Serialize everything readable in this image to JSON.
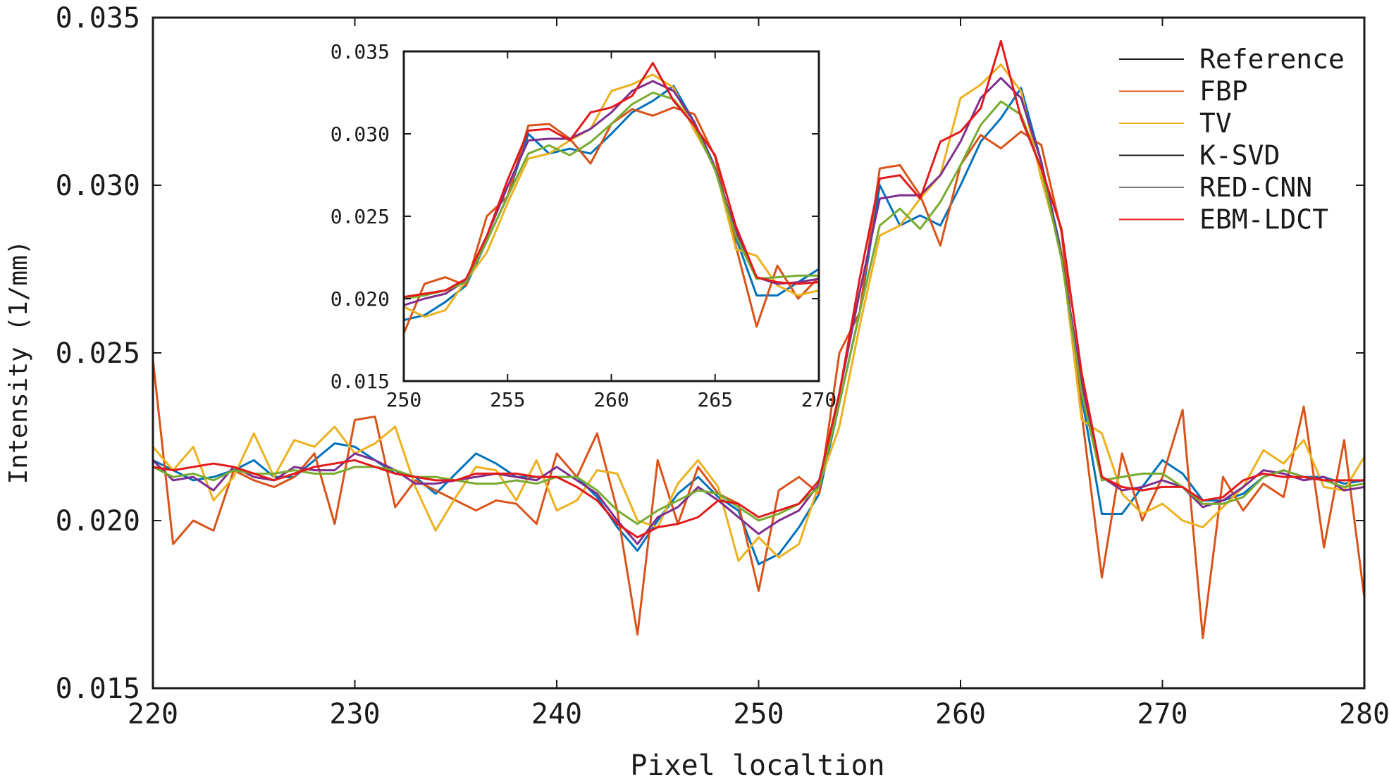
{
  "chart_data": [
    {
      "type": "line",
      "title": "",
      "xlabel": "Pixel localtion",
      "ylabel": "Intensity (1/mm)",
      "xlim": [
        220,
        280
      ],
      "ylim": [
        0.015,
        0.035
      ],
      "xticks": [
        220,
        230,
        240,
        250,
        260,
        270,
        280
      ],
      "xtick_labels": [
        "220",
        "230",
        "240",
        "250",
        "260",
        "270",
        "280"
      ],
      "yticks": [
        0.015,
        0.02,
        0.025,
        0.03,
        0.035
      ],
      "ytick_labels": [
        "0.015",
        "0.020",
        "0.025",
        "0.030",
        "0.035"
      ],
      "grid": false,
      "legend_position": "top-right",
      "x": [
        220,
        221,
        222,
        223,
        224,
        225,
        226,
        227,
        228,
        229,
        230,
        231,
        232,
        233,
        234,
        235,
        236,
        237,
        238,
        239,
        240,
        241,
        242,
        243,
        244,
        245,
        246,
        247,
        248,
        249,
        250,
        251,
        252,
        253,
        254,
        255,
        256,
        257,
        258,
        259,
        260,
        261,
        262,
        263,
        264,
        265,
        266,
        267,
        268,
        269,
        270,
        271,
        272,
        273,
        274,
        275,
        276,
        277,
        278,
        279,
        280
      ],
      "series": [
        {
          "name": "Reference",
          "color": "#0072BD",
          "values": [
            0.0218,
            0.0215,
            0.0212,
            0.0213,
            0.0215,
            0.0218,
            0.0213,
            0.0213,
            0.0218,
            0.0223,
            0.0222,
            0.0218,
            0.0214,
            0.0213,
            0.0208,
            0.0214,
            0.022,
            0.0217,
            0.0213,
            0.0213,
            0.0213,
            0.0213,
            0.0207,
            0.0198,
            0.0191,
            0.02,
            0.0208,
            0.0213,
            0.0207,
            0.0203,
            0.0187,
            0.019,
            0.0198,
            0.0208,
            0.0235,
            0.0262,
            0.03,
            0.0288,
            0.0291,
            0.0288,
            0.03,
            0.0313,
            0.032,
            0.0329,
            0.0307,
            0.028,
            0.0237,
            0.0202,
            0.0202,
            0.021,
            0.0218,
            0.0214,
            0.0206,
            0.0206,
            0.0208,
            0.0213,
            0.0215,
            0.0213,
            0.0213,
            0.0211,
            0.0212
          ]
        },
        {
          "name": "FBP",
          "color": "#D95319",
          "values": [
            0.0248,
            0.0193,
            0.02,
            0.0197,
            0.0215,
            0.0212,
            0.021,
            0.0213,
            0.022,
            0.0199,
            0.023,
            0.0231,
            0.0204,
            0.0212,
            0.0209,
            0.0206,
            0.0203,
            0.0206,
            0.0205,
            0.0199,
            0.022,
            0.0213,
            0.0226,
            0.0203,
            0.0166,
            0.0218,
            0.0199,
            0.0216,
            0.0208,
            0.0205,
            0.0179,
            0.0209,
            0.0213,
            0.0208,
            0.025,
            0.0262,
            0.0305,
            0.0306,
            0.0297,
            0.0282,
            0.0306,
            0.0315,
            0.0311,
            0.0316,
            0.0312,
            0.0286,
            0.0232,
            0.0183,
            0.022,
            0.02,
            0.0213,
            0.0233,
            0.0165,
            0.0213,
            0.0203,
            0.0211,
            0.0207,
            0.0234,
            0.0192,
            0.0224,
            0.0177
          ]
        },
        {
          "name": "TV",
          "color": "#EDB120",
          "values": [
            0.0222,
            0.0215,
            0.0222,
            0.0206,
            0.0213,
            0.0226,
            0.0213,
            0.0224,
            0.0222,
            0.0228,
            0.022,
            0.0223,
            0.0228,
            0.021,
            0.0197,
            0.0207,
            0.0216,
            0.0215,
            0.0206,
            0.0218,
            0.0203,
            0.0206,
            0.0215,
            0.0214,
            0.02,
            0.0198,
            0.0211,
            0.0218,
            0.021,
            0.0188,
            0.0195,
            0.0189,
            0.0193,
            0.0211,
            0.0228,
            0.0258,
            0.0285,
            0.0288,
            0.0296,
            0.0303,
            0.0326,
            0.033,
            0.0336,
            0.0328,
            0.0302,
            0.028,
            0.023,
            0.0226,
            0.0208,
            0.0202,
            0.0205,
            0.02,
            0.0198,
            0.0204,
            0.021,
            0.0221,
            0.0217,
            0.0224,
            0.021,
            0.0209,
            0.0219
          ]
        },
        {
          "name": "K-SVD",
          "color": "#7E2F8E",
          "values": [
            0.0218,
            0.0212,
            0.0213,
            0.0209,
            0.0216,
            0.0213,
            0.0212,
            0.0216,
            0.0215,
            0.0215,
            0.022,
            0.0218,
            0.0215,
            0.0211,
            0.0211,
            0.0212,
            0.0213,
            0.0214,
            0.0213,
            0.0212,
            0.0216,
            0.0212,
            0.0208,
            0.02,
            0.0193,
            0.0201,
            0.0204,
            0.021,
            0.0206,
            0.0201,
            0.0196,
            0.02,
            0.0203,
            0.0211,
            0.0238,
            0.0268,
            0.0296,
            0.0297,
            0.0297,
            0.0303,
            0.0313,
            0.0326,
            0.0332,
            0.0326,
            0.0307,
            0.0279,
            0.0241,
            0.0213,
            0.0209,
            0.021,
            0.0212,
            0.021,
            0.0204,
            0.0206,
            0.021,
            0.0215,
            0.0214,
            0.0212,
            0.0213,
            0.0209,
            0.021
          ]
        },
        {
          "name": "RED-CNN",
          "color": "#77AC30",
          "values": [
            0.0216,
            0.0213,
            0.0214,
            0.0212,
            0.0215,
            0.0214,
            0.0214,
            0.0215,
            0.0214,
            0.0214,
            0.0216,
            0.0216,
            0.0215,
            0.0213,
            0.0213,
            0.0212,
            0.0211,
            0.0211,
            0.0212,
            0.0211,
            0.0213,
            0.0213,
            0.0209,
            0.0203,
            0.0199,
            0.0203,
            0.0206,
            0.0209,
            0.0208,
            0.0204,
            0.02,
            0.0202,
            0.0205,
            0.021,
            0.0235,
            0.0262,
            0.0288,
            0.0293,
            0.0287,
            0.0295,
            0.0306,
            0.0318,
            0.0325,
            0.0321,
            0.0305,
            0.0278,
            0.0238,
            0.0212,
            0.0213,
            0.0214,
            0.0214,
            0.021,
            0.0205,
            0.0205,
            0.0207,
            0.0213,
            0.0215,
            0.0213,
            0.0212,
            0.021,
            0.0211
          ]
        },
        {
          "name": "EBM-LDCT",
          "color": "#E31A1C",
          "values": [
            0.0216,
            0.0215,
            0.0216,
            0.0217,
            0.0216,
            0.0214,
            0.0212,
            0.0214,
            0.0216,
            0.0217,
            0.0218,
            0.0216,
            0.0214,
            0.0213,
            0.0212,
            0.0212,
            0.0214,
            0.0214,
            0.0214,
            0.0213,
            0.0213,
            0.021,
            0.0206,
            0.0199,
            0.0195,
            0.0198,
            0.0199,
            0.0201,
            0.0206,
            0.0205,
            0.0201,
            0.0203,
            0.0205,
            0.0212,
            0.0238,
            0.0272,
            0.0302,
            0.0303,
            0.0296,
            0.0313,
            0.0316,
            0.0323,
            0.0343,
            0.032,
            0.0305,
            0.0287,
            0.0244,
            0.0213,
            0.021,
            0.0209,
            0.021,
            0.021,
            0.0206,
            0.0207,
            0.0212,
            0.0214,
            0.0213,
            0.0213,
            0.0212,
            0.0212,
            0.0212
          ]
        }
      ]
    },
    {
      "type": "line",
      "title": "",
      "xlabel": "",
      "ylabel": "",
      "xlim": [
        250,
        270
      ],
      "ylim": [
        0.015,
        0.035
      ],
      "xticks": [
        250,
        255,
        260,
        265,
        270
      ],
      "xtick_labels": [
        "250",
        "255",
        "260",
        "265",
        "270"
      ],
      "yticks": [
        0.015,
        0.02,
        0.025,
        0.03,
        0.035
      ],
      "ytick_labels": [
        "0.015",
        "0.020",
        "0.025",
        "0.030",
        "0.035"
      ],
      "grid": false,
      "legend_position": "none",
      "x": [
        250,
        251,
        252,
        253,
        254,
        255,
        256,
        257,
        258,
        259,
        260,
        261,
        262,
        263,
        264,
        265,
        266,
        267,
        268,
        269,
        270
      ],
      "series": [
        {
          "name": "Reference",
          "color": "#0072BD",
          "values": [
            0.0187,
            0.019,
            0.0198,
            0.0208,
            0.0235,
            0.0262,
            0.03,
            0.0288,
            0.0291,
            0.0288,
            0.03,
            0.0313,
            0.032,
            0.0329,
            0.0307,
            0.028,
            0.0237,
            0.0202,
            0.0202,
            0.021,
            0.0218
          ]
        },
        {
          "name": "FBP",
          "color": "#D95319",
          "values": [
            0.0179,
            0.0209,
            0.0213,
            0.0208,
            0.025,
            0.0262,
            0.0305,
            0.0306,
            0.0297,
            0.0282,
            0.0306,
            0.0315,
            0.0311,
            0.0316,
            0.0312,
            0.0286,
            0.0232,
            0.0183,
            0.022,
            0.02,
            0.0213
          ]
        },
        {
          "name": "TV",
          "color": "#EDB120",
          "values": [
            0.0195,
            0.0189,
            0.0193,
            0.0211,
            0.0228,
            0.0258,
            0.0285,
            0.0288,
            0.0296,
            0.0303,
            0.0326,
            0.033,
            0.0336,
            0.0328,
            0.0302,
            0.028,
            0.023,
            0.0226,
            0.0208,
            0.0202,
            0.0205
          ]
        },
        {
          "name": "K-SVD",
          "color": "#7E2F8E",
          "values": [
            0.0196,
            0.02,
            0.0203,
            0.0211,
            0.0238,
            0.0268,
            0.0296,
            0.0297,
            0.0297,
            0.0303,
            0.0313,
            0.0326,
            0.0332,
            0.0326,
            0.0307,
            0.0279,
            0.0241,
            0.0213,
            0.0209,
            0.021,
            0.0212
          ]
        },
        {
          "name": "RED-CNN",
          "color": "#77AC30",
          "values": [
            0.02,
            0.0202,
            0.0205,
            0.021,
            0.0235,
            0.0262,
            0.0288,
            0.0293,
            0.0287,
            0.0295,
            0.0306,
            0.0318,
            0.0325,
            0.0321,
            0.0305,
            0.0278,
            0.0238,
            0.0212,
            0.0213,
            0.0214,
            0.0214
          ]
        },
        {
          "name": "EBM-LDCT",
          "color": "#E31A1C",
          "values": [
            0.0201,
            0.0203,
            0.0205,
            0.0212,
            0.0238,
            0.0272,
            0.0302,
            0.0303,
            0.0296,
            0.0313,
            0.0316,
            0.0323,
            0.0343,
            0.032,
            0.0305,
            0.0287,
            0.0244,
            0.0213,
            0.021,
            0.0209,
            0.021
          ]
        }
      ]
    }
  ],
  "legend_line_colors": [
    "#1a1a1a",
    "#D95319",
    "#EDB120",
    "#1a1a1a",
    "#777777",
    "#E31A1C"
  ]
}
